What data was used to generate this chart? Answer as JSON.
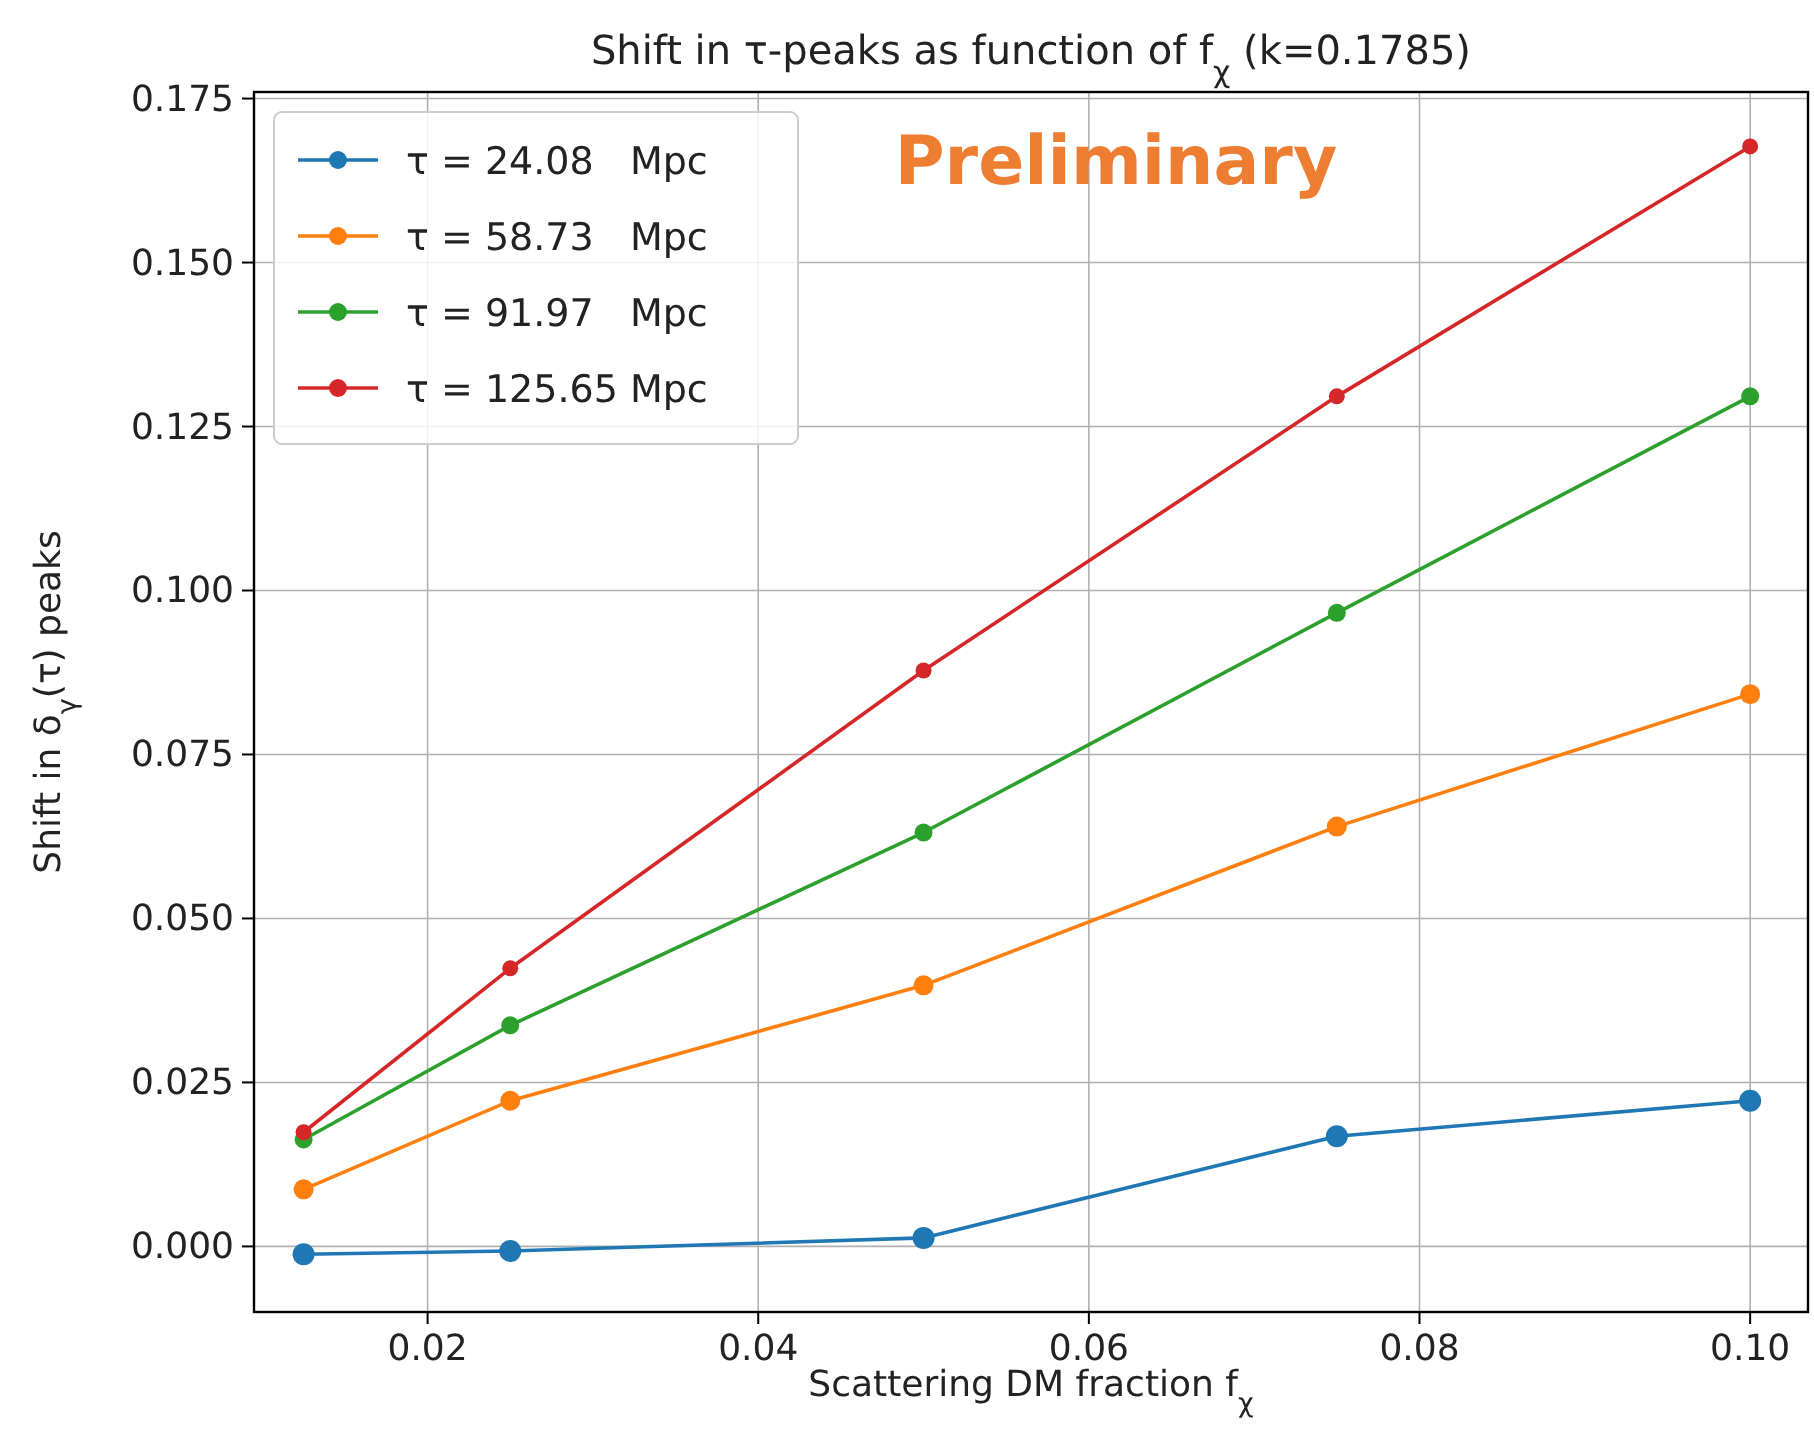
{
  "chart_data": {
    "type": "line",
    "title": "Shift in τ-peaks as function of f$_{χ}$  (k=0.1785)",
    "xlabel": "Scattering DM fraction f$_{χ}$",
    "ylabel": "Shift in δ$_{γ}$(τ) peaks",
    "x": [
      0.0125,
      0.025,
      0.05,
      0.075,
      0.1
    ],
    "series": [
      {
        "name": "τ = 24.08   Mpc",
        "color": "#1f77b4",
        "values": [
          -0.0012,
          -0.0007,
          0.0013,
          0.0168,
          0.0222
        ]
      },
      {
        "name": "τ = 58.73   Mpc",
        "color": "#ff7f0e",
        "values": [
          0.0087,
          0.0222,
          0.0398,
          0.064,
          0.0842
        ]
      },
      {
        "name": "τ = 91.97   Mpc",
        "color": "#2ca02c",
        "values": [
          0.0163,
          0.0337,
          0.0631,
          0.0966,
          0.1296
        ]
      },
      {
        "name": "τ = 125.65 Mpc",
        "color": "#d62728",
        "values": [
          0.0174,
          0.0424,
          0.0878,
          0.1296,
          0.1677
        ]
      }
    ],
    "xlim": [
      0.0095,
      0.1035
    ],
    "xticks": [
      {
        "value": 0.02,
        "label": "0.02"
      },
      {
        "value": 0.04,
        "label": "0.04"
      },
      {
        "value": 0.06,
        "label": "0.06"
      },
      {
        "value": 0.08,
        "label": "0.08"
      },
      {
        "value": 0.1,
        "label": "0.10"
      }
    ],
    "ylim": [
      -0.01,
      0.176
    ],
    "yticks": [
      {
        "value": 0,
        "label": "0.000"
      },
      {
        "value": 0.025,
        "label": "0.025"
      },
      {
        "value": 0.05,
        "label": "0.050"
      },
      {
        "value": 0.075,
        "label": "0.075"
      },
      {
        "value": 0.1,
        "label": "0.100"
      },
      {
        "value": 0.125,
        "label": "0.125"
      },
      {
        "value": 0.15,
        "label": "0.150"
      },
      {
        "value": 0.175,
        "label": "0.175"
      }
    ],
    "grid": true,
    "legend": "top left",
    "marker": "circle",
    "line_style": "solid",
    "annotations": [
      "Preliminary"
    ]
  }
}
